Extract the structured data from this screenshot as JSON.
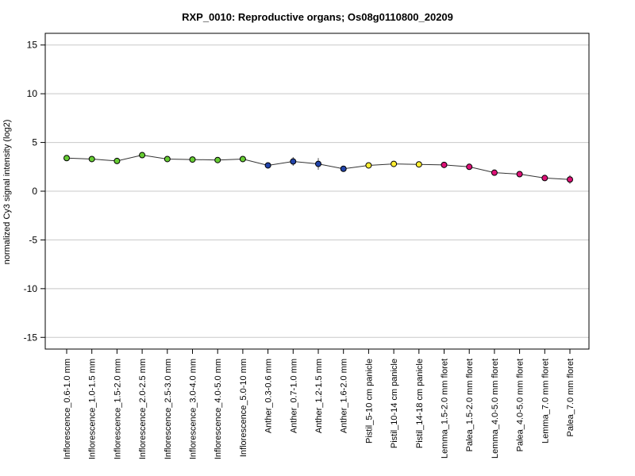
{
  "chart_data": {
    "type": "line",
    "title": "RXP_0010: Reproductive organs; Os08g0110800_20209",
    "ylabel": "normalized Cy3 signal intensity (log2)",
    "xlabel": "",
    "ylim": [
      -16.2,
      16.2
    ],
    "yticks": [
      -15,
      -10,
      -5,
      0,
      5,
      10,
      15
    ],
    "grid": "horizontal",
    "categories": [
      "Inflorescence_0.6-1.0 mm",
      "Inflorescence_1.0-1.5 mm",
      "Inflorescence_1.5-2.0 mm",
      "Inflorescence_2.0-2.5 mm",
      "Inflorescence_2.5-3.0 mm",
      "Inflorescence_3.0-4.0 mm",
      "Inflorescence_4.0-5.0 mm",
      "Inflorescence_5.0-10 mm",
      "Anther_0.3-0.6 mm",
      "Anther_0.7-1.0 mm",
      "Anther_1.2-1.5 mm",
      "Anther_1.6-2.0 mm",
      "Pistil_5-10 cm panicle",
      "Pistil_10-14 cm panicle",
      "Pistil_14-18 cm panicle",
      "Lemma_1.5-2.0 mm floret",
      "Palea_1.5-2.0 mm floret",
      "Lemma_4.0-5.0 mm floret",
      "Palea_4.0-5.0 mm floret",
      "Lemma_7.0 mm floret",
      "Palea_7.0 mm floret"
    ],
    "values": [
      3.4,
      3.3,
      3.1,
      3.7,
      3.3,
      3.25,
      3.2,
      3.3,
      2.65,
      3.05,
      2.8,
      2.3,
      2.65,
      2.8,
      2.75,
      2.7,
      2.5,
      1.9,
      1.75,
      1.35,
      1.2
    ],
    "errors": [
      0.1,
      0.1,
      0.1,
      0.15,
      0.1,
      0.1,
      0.1,
      0.1,
      0.15,
      0.45,
      0.6,
      0.15,
      0.15,
      0.15,
      0.15,
      0.1,
      0.25,
      0.1,
      0.3,
      0.25,
      0.45
    ],
    "colors": [
      "#66cc33",
      "#66cc33",
      "#66cc33",
      "#66cc33",
      "#66cc33",
      "#66cc33",
      "#66cc33",
      "#66cc33",
      "#2244aa",
      "#2244aa",
      "#2244aa",
      "#2244aa",
      "#ffee33",
      "#ffee33",
      "#ffee33",
      "#dd1177",
      "#dd1177",
      "#dd1177",
      "#dd1177",
      "#dd1177",
      "#dd1177"
    ],
    "line_color": "#333333",
    "grid_color": "#c8c8c8"
  }
}
